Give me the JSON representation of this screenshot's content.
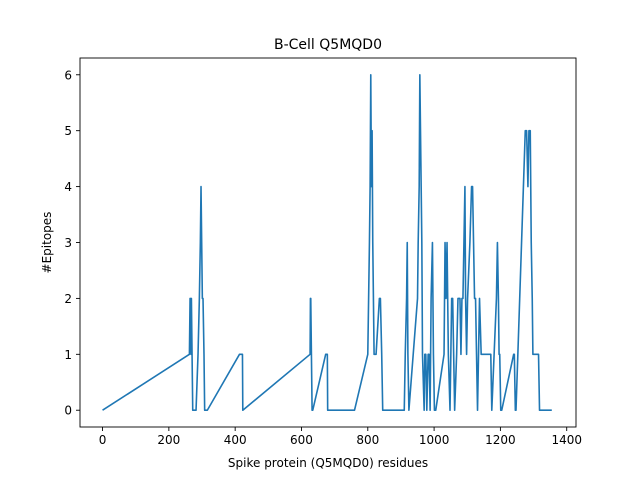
{
  "chart_data": {
    "type": "line",
    "title": "B-Cell Q5MQD0",
    "xlabel": "Spike protein (Q5MQD0) residues",
    "ylabel": "#Epitopes",
    "xlim": [
      -68,
      1428
    ],
    "ylim": [
      -0.3,
      6.3
    ],
    "xticks": [
      0,
      200,
      400,
      600,
      800,
      1000,
      1200,
      1400
    ],
    "yticks": [
      0,
      1,
      2,
      3,
      4,
      5,
      6
    ],
    "grid": false,
    "color": "#1f77b4",
    "series": [
      {
        "x": [
          0,
          262,
          264,
          265,
          267,
          268,
          270,
          272,
          282,
          288,
          292,
          295,
          297,
          299,
          301,
          303,
          306,
          308,
          312,
          316,
          413,
          414,
          422,
          423,
          626,
          627,
          628,
          630,
          632,
          634,
          673,
          674,
          678,
          679,
          760,
          800,
          805,
          807,
          809,
          811,
          813,
          815,
          817,
          819,
          823,
          825,
          835,
          838,
          842,
          845,
          910,
          913,
          917,
          919,
          921,
          924,
          950,
          952,
          955,
          957,
          959,
          961,
          963,
          965,
          970,
          972,
          975,
          978,
          982,
          985,
          988,
          991,
          995,
          998,
          1001,
          1005,
          1030,
          1033,
          1036,
          1039,
          1043,
          1048,
          1053,
          1056,
          1059,
          1062,
          1068,
          1072,
          1078,
          1081,
          1084,
          1087,
          1090,
          1093,
          1095,
          1098,
          1101,
          1108,
          1113,
          1116,
          1119,
          1122,
          1125,
          1128,
          1131,
          1134,
          1137,
          1142,
          1165,
          1168,
          1171,
          1174,
          1188,
          1191,
          1194,
          1196,
          1198,
          1201,
          1204,
          1240,
          1242,
          1245,
          1247,
          1275,
          1279,
          1283,
          1286,
          1290,
          1293,
          1296,
          1298,
          1300,
          1303,
          1305,
          1315,
          1318,
          1355
        ],
        "y": [
          0,
          1,
          2,
          2,
          1,
          2,
          1,
          0,
          0,
          1,
          2,
          3,
          4,
          3,
          2,
          2,
          1,
          0,
          0,
          0,
          1,
          1,
          1,
          0,
          1,
          2,
          2,
          1,
          0,
          0,
          1,
          1,
          1,
          0,
          0,
          1,
          3,
          4,
          6,
          4,
          5,
          3,
          2,
          1,
          1,
          1,
          2,
          2,
          1,
          0,
          0,
          1,
          2,
          3,
          1,
          0,
          2,
          3,
          4,
          6,
          5,
          4,
          3,
          1,
          0,
          1,
          1,
          0,
          1,
          1,
          0,
          2,
          3,
          1,
          0,
          0,
          1,
          3,
          2,
          3,
          1,
          0,
          2,
          2,
          1,
          0,
          1,
          2,
          2,
          1,
          2,
          2,
          3,
          4,
          2,
          1,
          2,
          3,
          4,
          4,
          3,
          2,
          2,
          1,
          0,
          1,
          2,
          1,
          1,
          1,
          1,
          0,
          2,
          3,
          2,
          1,
          1,
          0,
          0,
          1,
          1,
          0,
          0,
          5,
          5,
          4,
          5,
          5,
          3,
          2,
          1,
          1,
          1,
          1,
          1,
          0,
          0
        ]
      }
    ]
  }
}
